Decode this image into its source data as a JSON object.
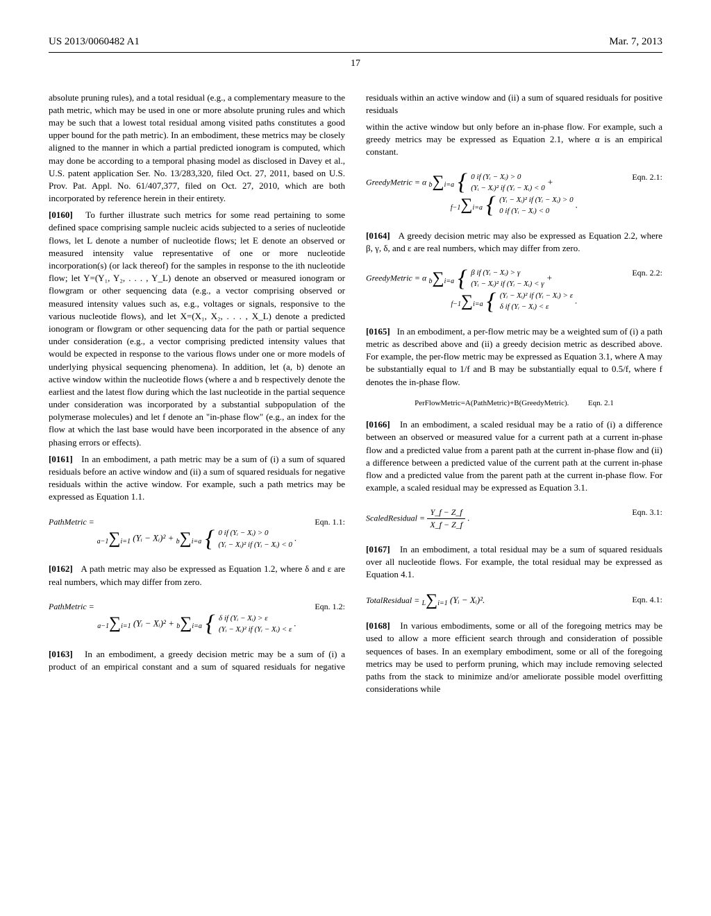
{
  "header": {
    "doc_id": "US 2013/0060482 A1",
    "date": "Mar. 7, 2013"
  },
  "page_number": "17",
  "left_col": {
    "p1": "absolute pruning rules), and a total residual (e.g., a complementary measure to the path metric, which may be used in one or more absolute pruning rules and which may be such that a lowest total residual among visited paths constitutes a good upper bound for the path metric). In an embodiment, these metrics may be closely aligned to the manner in which a partial predicted ionogram is computed, which may done be according to a temporal phasing model as disclosed in Davey et al., U.S. patent application Ser. No. 13/283,320, filed Oct. 27, 2011, based on U.S. Prov. Pat. Appl. No. 61/407,377, filed on Oct. 27, 2010, which are both incorporated by reference herein in their entirety.",
    "p2_num": "[0160]",
    "p2": "To further illustrate such metrics for some read pertaining to some defined space comprising sample nucleic acids subjected to a series of nucleotide flows, let L denote a number of nucleotide flows; let E denote an observed or measured intensity value representative of one or more nucleotide incorporation(s) (or lack thereof) for the samples in response to the ith nucleotide flow; let Y=(Y₁, Y₂, . . . , Y_L) denote an observed or measured ionogram or flowgram or other sequencing data (e.g., a vector comprising observed or measured intensity values such as, e.g., voltages or signals, responsive to the various nucleotide flows), and let X=(X₁, X₂, . . . , X_L) denote a predicted ionogram or flowgram or other sequencing data for the path or partial sequence under consideration (e.g., a vector comprising predicted intensity values that would be expected in response to the various flows under one or more models of underlying physical sequencing phenomena). In addition, let (a, b) denote an active window within the nucleotide flows (where a and b respectively denote the earliest and the latest flow during which the last nucleotide in the partial sequence under consideration was incorporated by a substantial subpopulation of the polymerase molecules) and let f denote an \"in-phase flow\" (e.g., an index for the flow at which the last base would have been incorporated in the absence of any phasing errors or effects).",
    "p3_num": "[0161]",
    "p3": "In an embodiment, a path metric may be a sum of (i) a sum of squared residuals before an active window and (ii) a sum of squared residuals for negative residuals within the active window. For example, such a path metrics may be expressed as Equation 1.1.",
    "eqn11": {
      "lhs": "PathMetric =",
      "label": "Eqn. 1.1:",
      "sum1_top": "a−1",
      "sum1_bot": "i=1",
      "term1": "(Yᵢ − Xᵢ)²  +",
      "sum2_top": "b",
      "sum2_bot": "i=a",
      "case1": "0               if  (Yᵢ − Xᵢ) > 0",
      "case2": "(Yᵢ − Xᵢ)²   if  (Yᵢ − Xᵢ) < 0",
      "tail": "."
    },
    "p4_num": "[0162]",
    "p4": "A path metric may also be expressed as Equation 1.2, where δ and ε are real numbers, which may differ from zero.",
    "eqn12": {
      "lhs": "PathMetric =",
      "label": "Eqn. 1.2:",
      "sum1_top": "a−1",
      "sum1_bot": "i=1",
      "term1": "(Yᵢ − Xᵢ)²  +",
      "sum2_top": "b",
      "sum2_bot": "i=a",
      "case1": "δ               if  (Yᵢ − Xᵢ) > ε",
      "case2": "(Yᵢ − Xᵢ)²   if  (Yᵢ − Xᵢ) < ε",
      "tail": "."
    },
    "p5_num": "[0163]",
    "p5": "In an embodiment, a greedy decision metric may be a sum of (i) a product of an empirical constant and a sum of squared residuals for negative residuals within an active window and (ii) a sum of squared residuals for positive residuals"
  },
  "right_col": {
    "p1": "within the active window but only before an in-phase flow. For example, such a greedy metrics may be expressed as Equation 2.1, where α is an empirical constant.",
    "eqn21": {
      "lhs": "GreedyMetric = α",
      "label": "Eqn. 2.1:",
      "sum1_top": "b",
      "sum1_bot": "i=a",
      "case1a": "0               if  (Yᵢ − Xᵢ) > 0",
      "case1b": "(Yᵢ − Xᵢ)²   if  (Yᵢ − Xᵢ) < 0",
      "plus": "+",
      "sum2_top": "f−1",
      "sum2_bot": "i=a",
      "case2a": "(Yᵢ − Xᵢ)²   if  (Yᵢ − Xᵢ) > 0",
      "case2b": "0               if  (Yᵢ − Xᵢ) < 0",
      "tail": "."
    },
    "p2_num": "[0164]",
    "p2": "A greedy decision metric may also be expressed as Equation 2.2, where β, γ, δ, and ε are real numbers, which may differ from zero.",
    "eqn22": {
      "lhs": "GreedyMetric = α",
      "label": "Eqn. 2.2:",
      "sum1_top": "b",
      "sum1_bot": "i=a",
      "case1a": "β               if  (Yᵢ − Xᵢ) > γ",
      "case1b": "(Yᵢ − Xᵢ)²   if  (Yᵢ − Xᵢ) < γ",
      "plus": "+",
      "sum2_top": "f−1",
      "sum2_bot": "i=a",
      "case2a": "(Yᵢ − Xᵢ)²   if  (Yᵢ − Xᵢ) > ε",
      "case2b": "δ               if  (Yᵢ − Xᵢ) < ε",
      "tail": "."
    },
    "p3_num": "[0165]",
    "p3": "In an embodiment, a per-flow metric may be a weighted sum of (i) a path metric as described above and (ii) a greedy decision metric as described above. For example, the per-flow metric may be expressed as Equation 3.1, where A may be substantially equal to 1/f and B may be substantially equal to 0.5/f, where f denotes the in-phase flow.",
    "eqn_pfm": {
      "body": "PerFlowMetric=A(PathMetric)+B(GreedyMetric).",
      "label": "Eqn. 2.1"
    },
    "p4_num": "[0166]",
    "p4": "In an embodiment, a scaled residual may be a ratio of (i) a difference between an observed or measured value for a current path at a current in-phase flow and a predicted value from a parent path at the current in-phase flow and (ii) a difference between a predicted value of the current path at the current in-phase flow and a predicted value from the parent path at the current in-phase flow. For example, a scaled residual may be expressed as Equation 3.1.",
    "eqn31": {
      "lhs": "ScaledResidual =",
      "num": "Y_f − Z_f",
      "den": "X_f − Z_f",
      "tail": ".",
      "label": "Eqn. 3.1:"
    },
    "p5_num": "[0167]",
    "p5": "In an embodiment, a total residual may be a sum of squared residuals over all nucleotide flows. For example, the total residual may be expressed as Equation 4.1.",
    "eqn41": {
      "lhs": "TotalResidual =",
      "sum_top": "L",
      "sum_bot": "i=1",
      "term": "(Yᵢ − Xᵢ)².",
      "label": "Eqn. 4.1:"
    },
    "p6_num": "[0168]",
    "p6": "In various embodiments, some or all of the foregoing metrics may be used to allow a more efficient search through and consideration of possible sequences of bases. In an exemplary embodiment, some or all of the foregoing metrics may be used to perform pruning, which may include removing selected paths from the stack to minimize and/or ameliorate possible model overfitting considerations while"
  }
}
